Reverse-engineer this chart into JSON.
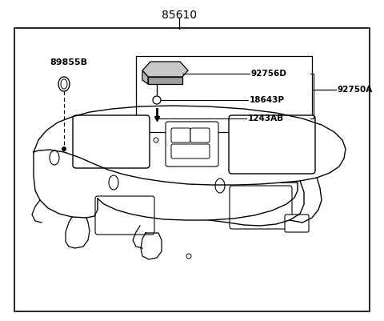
{
  "bg": "#ffffff",
  "lc": "#000000",
  "title": "85610",
  "label_89855B": "89855B",
  "label_92756D": "92756D",
  "label_92750A": "92750A",
  "label_18643P": "18643P",
  "label_1243AB": "1243AB"
}
